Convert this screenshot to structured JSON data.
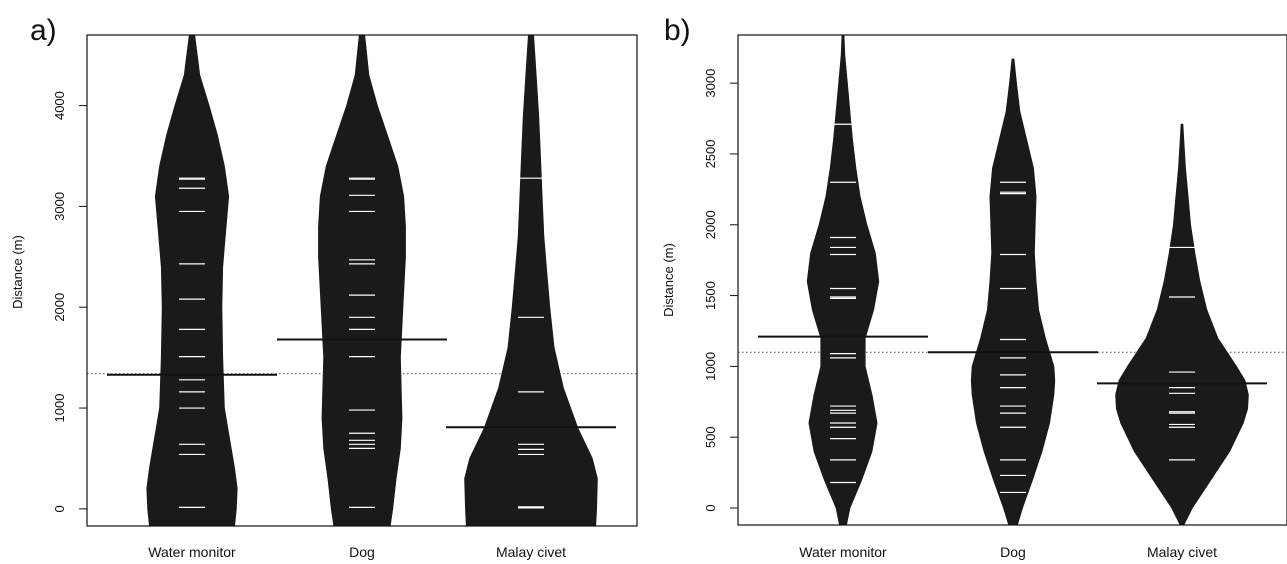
{
  "chart_data": [
    {
      "type": "beanplot",
      "panel_label": "a)",
      "ylabel": "Distance (m)",
      "categories": [
        "Water monitor",
        "Dog",
        "Malay civet"
      ],
      "yticks": [
        0,
        1000,
        2000,
        3000,
        4000
      ],
      "ylim": [
        -170,
        4700
      ],
      "overall_mean": 1340,
      "group_means": [
        1330,
        1680,
        810
      ],
      "observations": [
        [
          15,
          540,
          640,
          1000,
          1160,
          1280,
          1510,
          1780,
          2080,
          2430,
          2950,
          3180,
          3270,
          3280
        ],
        [
          15,
          600,
          640,
          680,
          750,
          980,
          1510,
          1780,
          1900,
          2120,
          2430,
          2470,
          2950,
          3110,
          3270,
          3280
        ],
        [
          10,
          20,
          540,
          590,
          640,
          1160,
          1900,
          3280
        ]
      ],
      "density": [
        {
          "y": [
            -170,
            0,
            200,
            400,
            700,
            1000,
            1500,
            2000,
            2400,
            2800,
            3100,
            3400,
            3700,
            4000,
            4300,
            4700
          ],
          "w": [
            0.5,
            0.52,
            0.53,
            0.5,
            0.44,
            0.38,
            0.36,
            0.35,
            0.36,
            0.4,
            0.43,
            0.38,
            0.3,
            0.2,
            0.09,
            0.03
          ]
        },
        {
          "y": [
            -170,
            0,
            300,
            600,
            900,
            1200,
            1500,
            2000,
            2500,
            2800,
            3100,
            3400,
            3700,
            4000,
            4300,
            4700
          ],
          "w": [
            0.33,
            0.36,
            0.4,
            0.45,
            0.47,
            0.46,
            0.45,
            0.48,
            0.51,
            0.51,
            0.49,
            0.42,
            0.3,
            0.18,
            0.08,
            0.03
          ]
        },
        {
          "y": [
            -170,
            0,
            300,
            500,
            800,
            1200,
            1600,
            2000,
            2300,
            2700,
            3100,
            3500,
            3900,
            4300,
            4700
          ],
          "w": [
            0.76,
            0.77,
            0.78,
            0.72,
            0.55,
            0.38,
            0.27,
            0.22,
            0.19,
            0.15,
            0.13,
            0.11,
            0.09,
            0.06,
            0.03
          ]
        }
      ]
    },
    {
      "type": "beanplot",
      "panel_label": "b)",
      "ylabel": "Distance (m)",
      "categories": [
        "Water monitor",
        "Dog",
        "Malay civet"
      ],
      "yticks": [
        0,
        500,
        1000,
        1500,
        2000,
        2500,
        3000
      ],
      "ylim": [
        -120,
        3340
      ],
      "overall_mean": 1100,
      "group_means": [
        1210,
        1100,
        880
      ],
      "observations": [
        [
          180,
          340,
          490,
          570,
          600,
          670,
          690,
          720,
          1060,
          1090,
          1480,
          1490,
          1550,
          1790,
          1840,
          1910,
          2300,
          2710
        ],
        [
          110,
          230,
          340,
          570,
          670,
          720,
          850,
          940,
          1060,
          1190,
          1550,
          1790,
          2220,
          2230,
          2300
        ],
        [
          340,
          570,
          590,
          670,
          680,
          810,
          850,
          960,
          1490,
          1840
        ]
      ],
      "density": [
        {
          "y": [
            -120,
            0,
            200,
            400,
            600,
            800,
            1000,
            1200,
            1400,
            1600,
            1800,
            2000,
            2200,
            2400,
            2600,
            2800,
            3000,
            3200,
            3340
          ],
          "w": [
            0.04,
            0.08,
            0.22,
            0.34,
            0.4,
            0.34,
            0.26,
            0.26,
            0.36,
            0.42,
            0.38,
            0.28,
            0.2,
            0.15,
            0.11,
            0.08,
            0.05,
            0.02,
            0.01
          ]
        },
        {
          "y": [
            -120,
            0,
            200,
            400,
            600,
            800,
            900,
            1000,
            1200,
            1400,
            1600,
            1800,
            2000,
            2200,
            2400,
            2600,
            2800,
            3000,
            3170
          ],
          "w": [
            0.05,
            0.11,
            0.23,
            0.34,
            0.43,
            0.48,
            0.49,
            0.48,
            0.38,
            0.3,
            0.27,
            0.25,
            0.26,
            0.27,
            0.24,
            0.16,
            0.08,
            0.04,
            0.01
          ]
        },
        {
          "y": [
            -120,
            0,
            200,
            400,
            600,
            700,
            800,
            900,
            1000,
            1200,
            1400,
            1600,
            1800,
            2000,
            2200,
            2400,
            2600,
            2710
          ],
          "w": [
            0.02,
            0.12,
            0.34,
            0.56,
            0.72,
            0.77,
            0.78,
            0.74,
            0.64,
            0.42,
            0.29,
            0.21,
            0.15,
            0.1,
            0.07,
            0.04,
            0.02,
            0.01
          ]
        }
      ]
    }
  ]
}
